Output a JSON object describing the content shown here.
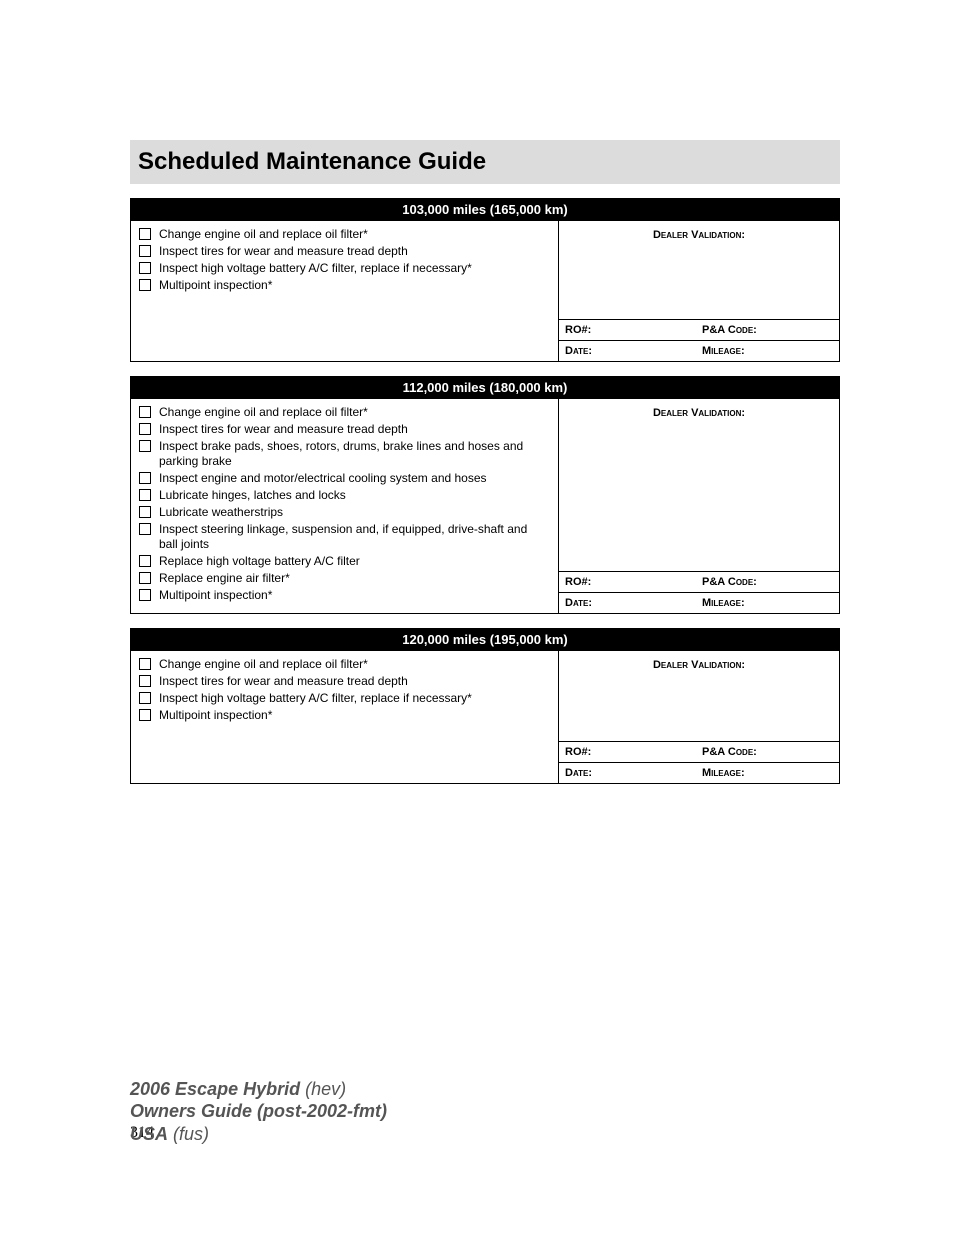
{
  "title": "Scheduled Maintenance Guide",
  "page_number": "314",
  "footer": {
    "line1_bold": "2006 Escape Hybrid",
    "line1_ital": " (hev)",
    "line2_bold": "Owners Guide (post-2002-fmt)",
    "line3_bold": "USA",
    "line3_ital": " (fus)"
  },
  "validation_labels": {
    "dealer": "Dealer Validation:",
    "ro": "RO#:",
    "pna": "P&A Code:",
    "date": "Date:",
    "mileage": "Mileage:"
  },
  "blocks": [
    {
      "header": "103,000 miles (165,000 km)",
      "items": [
        "Change engine oil and replace oil filter*",
        "Inspect tires for wear and measure tread depth",
        "Inspect high voltage battery A/C filter, replace if necessary*",
        "Multipoint inspection*"
      ],
      "right_min_height": 78
    },
    {
      "header": "112,000 miles (180,000 km)",
      "items": [
        "Change engine oil and replace oil filter*",
        "Inspect tires for wear and measure tread depth",
        "Inspect brake pads, shoes, rotors, drums, brake lines and hoses and parking brake",
        "Inspect engine and motor/electrical cooling system and hoses",
        "Lubricate hinges, latches and locks",
        "Lubricate weatherstrips",
        "Inspect steering linkage, suspension and, if equipped, drive-shaft and ball joints",
        "Replace high voltage battery A/C filter",
        "Replace engine air filter*",
        "Multipoint inspection*"
      ],
      "right_min_height": 88
    },
    {
      "header": "120,000 miles (195,000 km)",
      "items": [
        "Change engine oil and replace oil filter*",
        "Inspect tires for wear and measure tread depth",
        "Inspect high voltage battery A/C filter, replace if necessary*",
        "Multipoint inspection*"
      ],
      "right_min_height": 70
    }
  ]
}
